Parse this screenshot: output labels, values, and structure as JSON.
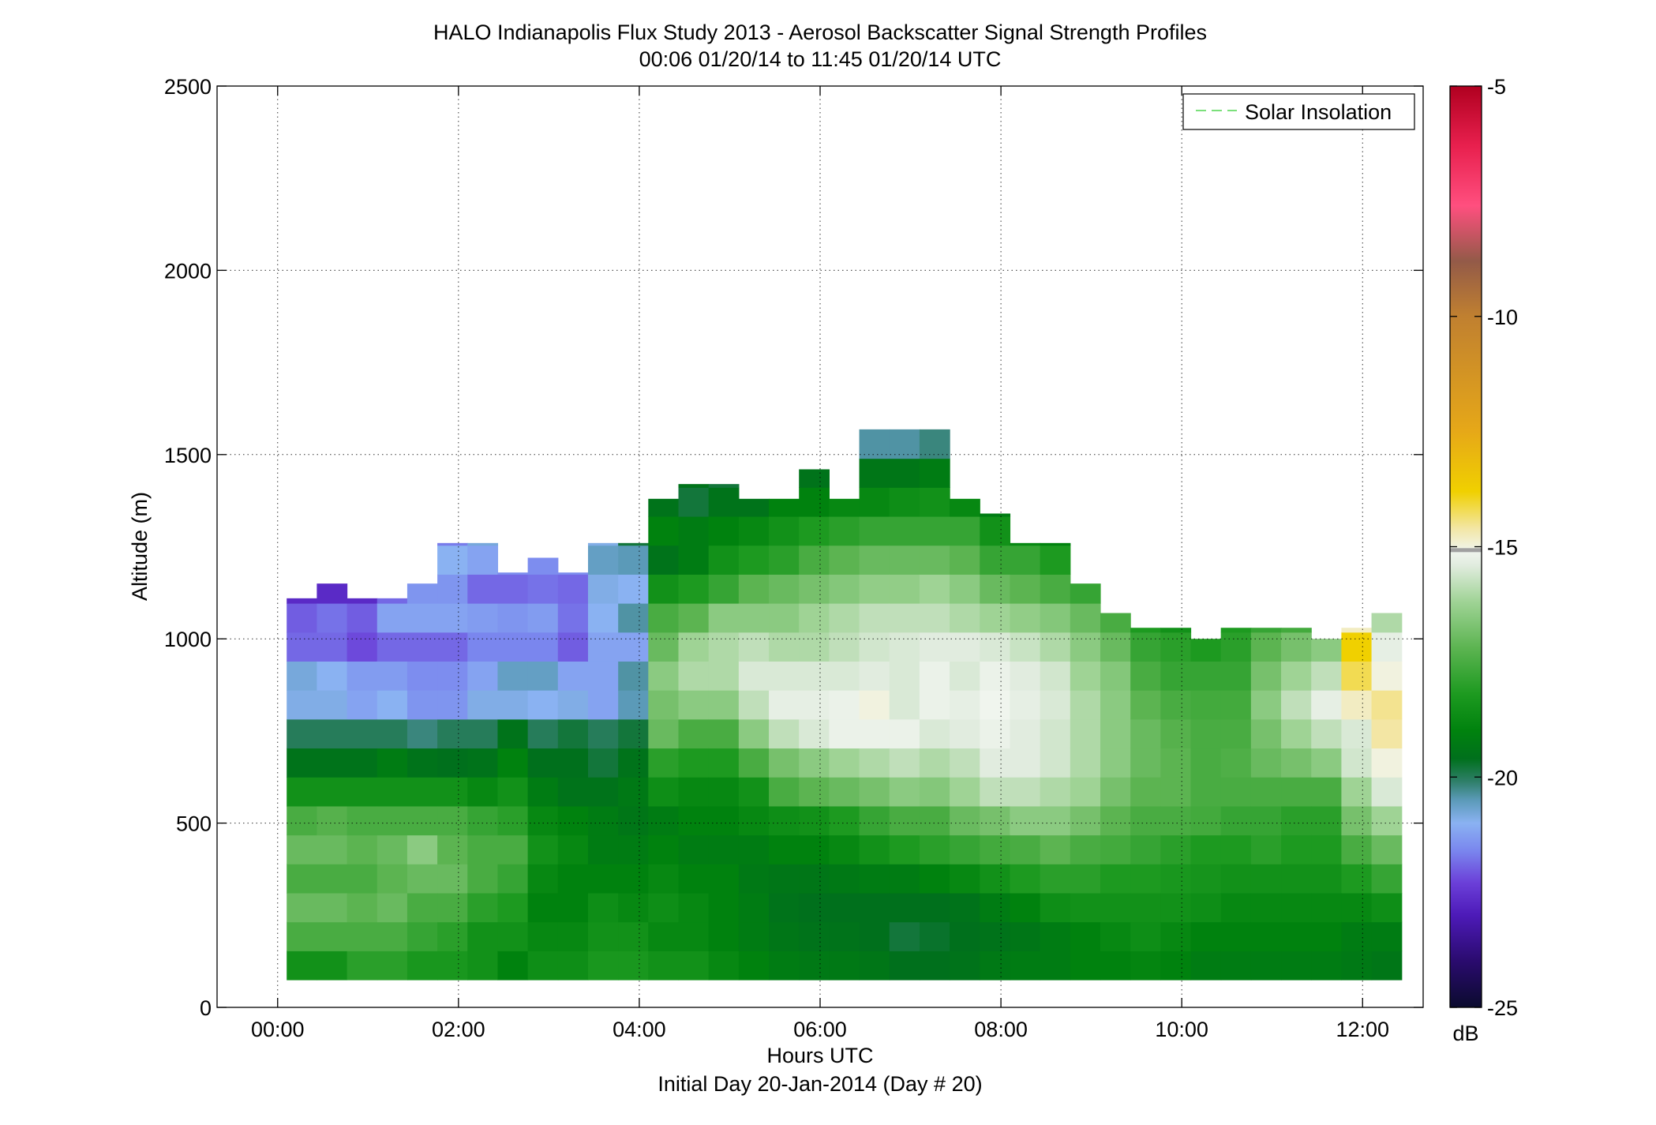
{
  "chart_data": {
    "type": "heatmap",
    "title": "HALO Indianapolis Flux Study 2013 - Aerosol Backscatter Signal Strength Profiles",
    "subtitle": "00:06 01/20/14 to 11:45 01/20/14  UTC",
    "xlabel": "Hours UTC",
    "xlabel_sub": "Initial Day 20-Jan-2014 (Day # 20)",
    "ylabel": "Altitude (m)",
    "x_unit": "hours",
    "xlim": [
      -0.67,
      12.67
    ],
    "ylim": [
      0,
      2500
    ],
    "x_ticks": [
      0,
      2,
      4,
      6,
      8,
      10,
      12
    ],
    "x_tick_labels": [
      "00:00",
      "02:00",
      "04:00",
      "06:00",
      "08:00",
      "10:00",
      "12:00"
    ],
    "y_ticks": [
      0,
      500,
      1000,
      1500,
      2000,
      2500
    ],
    "y_tick_labels": [
      "0",
      "500",
      "1000",
      "1500",
      "2000",
      "2500"
    ],
    "grid": true,
    "legend": {
      "placement": "top-right",
      "entries": [
        {
          "label": "Solar Insolation",
          "color": "#7be07b",
          "style": "dashed"
        }
      ]
    },
    "colorbar": {
      "label": "dB",
      "range": [
        -25,
        -5
      ],
      "ticks": [
        -25,
        -20,
        -15,
        -10,
        -5
      ],
      "tick_labels": [
        "-25",
        "-20",
        "-15",
        "-10",
        "-5"
      ]
    },
    "time_start_h": 0.1,
    "time_step_h": 0.3333,
    "altitude_start_m": 75,
    "altitude_step_m": 78.6,
    "ceiling_m": [
      1110,
      1150,
      1110,
      1110,
      1150,
      1260,
      1260,
      1180,
      1220,
      1180,
      1260,
      1260,
      1380,
      1420,
      1420,
      1380,
      1380,
      1460,
      1380,
      1580,
      1650,
      1580,
      1380,
      1340,
      1260,
      1260,
      1150,
      1070,
      1030,
      1030,
      1000,
      1030,
      1030,
      1030,
      1000,
      1030,
      1070
    ],
    "plume_top_m": [
      660,
      660,
      600,
      600,
      600,
      600,
      600,
      600,
      600,
      600,
      740,
      860,
      1070,
      1110,
      1110,
      1070,
      1070,
      1030,
      1030,
      1070,
      1070,
      1030,
      1030,
      1000,
      1000,
      960,
      960,
      920,
      920,
      920,
      920,
      1000,
      1000,
      1000,
      1000,
      1000,
      1000
    ],
    "profiles_db": [
      [
        -18.5,
        -17.5,
        -17,
        -17.5,
        -17,
        -17.5,
        -18.5,
        -19.5,
        -20,
        -20.5,
        -20.8,
        -21.5,
        -22,
        -22.3,
        -22,
        -21.8,
        -22.5,
        -22.3,
        -22
      ],
      [
        -18.5,
        -17.5,
        -17,
        -17.5,
        -17,
        -17.3,
        -18.5,
        -19.5,
        -20,
        -20.5,
        -21,
        -21.5,
        -21.8,
        -22.3,
        -22.5,
        -22,
        -22.3,
        -22.4,
        -22.4
      ],
      [
        -18,
        -17.5,
        -17.2,
        -17.5,
        -17.2,
        -17.5,
        -18.5,
        -19.5,
        -20,
        -20.8,
        -21.3,
        -21.8,
        -22,
        -22.3,
        -22.1,
        -21.8,
        -22.4,
        -22.4,
        -22.4
      ],
      [
        -18,
        -17.5,
        -17,
        -17.2,
        -17,
        -17.5,
        -18.5,
        -19.2,
        -20,
        -20.6,
        -21.3,
        -21.5,
        -21.2,
        -21.5,
        -21.8,
        -21.5,
        -22.3,
        -22.2,
        -22.2
      ],
      [
        -18.3,
        -17.8,
        -17.5,
        -17,
        -16.5,
        -17.5,
        -18.5,
        -19.5,
        -20.2,
        -21,
        -21.5,
        -21.5,
        -21.2,
        -21,
        -21.2,
        -21.3,
        -21.5,
        -22.2,
        -22.2
      ],
      [
        -18.3,
        -18,
        -17.5,
        -17,
        -17.2,
        -17.5,
        -18.5,
        -19.6,
        -20,
        -21,
        -21.5,
        -21.5,
        -21.2,
        -21,
        -21,
        -21.3,
        -21.5,
        -21.8,
        -21.8
      ],
      [
        -18.5,
        -18.5,
        -18,
        -17.5,
        -17.5,
        -17.8,
        -18.8,
        -19.5,
        -20,
        -20.5,
        -21.2,
        -21.2,
        -21.3,
        -21.5,
        -21.2,
        -20.4,
        -20.6,
        -21.2,
        -21.2
      ],
      [
        -19,
        -18.5,
        -18.2,
        -17.8,
        -17.5,
        -18,
        -18.5,
        -19,
        -19.5,
        -20.5,
        -20.6,
        -21.2,
        -21.4,
        -21.5,
        -21.5,
        -20.5,
        -20.3,
        -21.5,
        -21.5
      ],
      [
        -18.6,
        -18.8,
        -19,
        -18.8,
        -18.5,
        -18.8,
        -19.2,
        -19.6,
        -20,
        -20.6,
        -20.6,
        -21.2,
        -21.3,
        -21.4,
        -21.5,
        -20.2,
        -20.3,
        -21.5,
        -21.5
      ],
      [
        -18.6,
        -18.8,
        -19,
        -19,
        -18.8,
        -19,
        -19.5,
        -19.6,
        -19.8,
        -20.5,
        -21.2,
        -21.6,
        -21.8,
        -21.5,
        -21.5,
        -21.2,
        -20.2,
        -21.8,
        -21.8
      ],
      [
        -18.3,
        -18.5,
        -18.6,
        -19,
        -19.2,
        -19.2,
        -19.5,
        -19.8,
        -20,
        -20.8,
        -21.2,
        -20.8,
        -21,
        -20.5,
        -20.6,
        -20.5,
        -19.8,
        -22,
        -21.8
      ],
      [
        -18.3,
        -18.5,
        -18.8,
        -19,
        -19.2,
        -19.4,
        -19.3,
        -19.5,
        -19.8,
        -20.5,
        -20.4,
        -20.8,
        -20.4,
        -20.6,
        -20.5,
        -19.8,
        -19.5,
        -19.8,
        -19.8
      ],
      [
        -18.5,
        -18.8,
        -18.6,
        -18.8,
        -19,
        -19.2,
        -18.6,
        -18,
        -17,
        -16.8,
        -16.5,
        -17,
        -17.5,
        -18.5,
        -19.5,
        -19,
        -19.5,
        -19.8,
        -20.4
      ],
      [
        -18.5,
        -18.8,
        -18.8,
        -19,
        -19.2,
        -19,
        -18.8,
        -18.2,
        -17.5,
        -16.5,
        -16,
        -16.2,
        -17.2,
        -18.2,
        -19.2,
        -19.2,
        -19.8,
        -19.5,
        -20.5
      ],
      [
        -18.8,
        -19,
        -19,
        -19,
        -19.2,
        -19,
        -18.8,
        -18.2,
        -17.5,
        -16.5,
        -16,
        -16,
        -16.5,
        -17.8,
        -18.5,
        -19,
        -19.5,
        -19.8,
        -20.2
      ],
      [
        -19,
        -19.2,
        -19.2,
        -19.3,
        -19.2,
        -18.8,
        -18.5,
        -17.5,
        -16.5,
        -15.8,
        -15.5,
        -15.8,
        -16.5,
        -17.2,
        -18.2,
        -18.8,
        -19.5,
        -19.6,
        -20.6
      ],
      [
        -19.2,
        -19.4,
        -19.5,
        -19.4,
        -19,
        -18.6,
        -17.5,
        -16.8,
        -15.8,
        -15.3,
        -15.5,
        -16,
        -16.5,
        -17,
        -18,
        -18.5,
        -19,
        -19.6,
        -20.6
      ],
      [
        -19.3,
        -19.5,
        -19.6,
        -19.4,
        -19,
        -18.5,
        -17.2,
        -16.5,
        -15.5,
        -15.3,
        -15.5,
        -16,
        -16.2,
        -16.8,
        -17.5,
        -18.2,
        -19,
        -19.5,
        -20.5
      ],
      [
        -19.3,
        -19.5,
        -19.6,
        -19.3,
        -18.8,
        -18.2,
        -17,
        -16.2,
        -15.2,
        -15.2,
        -15.5,
        -15.8,
        -16,
        -16.6,
        -17.2,
        -18,
        -18.8,
        -19.5,
        -20.8
      ],
      [
        -19.4,
        -19.6,
        -19.6,
        -19.2,
        -18.5,
        -17.8,
        -16.8,
        -16,
        -15.2,
        -15,
        -15.4,
        -15.6,
        -15.8,
        -16.4,
        -17,
        -17.8,
        -18.8,
        -19.4,
        -20.4
      ],
      [
        -19.6,
        -19.8,
        -19.6,
        -19.2,
        -18.2,
        -17.5,
        -16.5,
        -15.8,
        -15.2,
        -15.5,
        -15.5,
        -15.5,
        -15.8,
        -16.4,
        -17,
        -17.8,
        -18.6,
        -19.4,
        -20.4
      ],
      [
        -19.6,
        -19.7,
        -19.6,
        -19,
        -18,
        -17.5,
        -16.6,
        -16,
        -15.5,
        -15.2,
        -15.2,
        -15.4,
        -15.8,
        -16.2,
        -17,
        -17.8,
        -18.5,
        -19.2,
        -20.2
      ],
      [
        -19.5,
        -19.6,
        -19.5,
        -18.8,
        -17.8,
        -17,
        -16.2,
        -15.8,
        -15.4,
        -15.3,
        -15.5,
        -15.4,
        -16,
        -16.5,
        -17.2,
        -17.8,
        -18.8,
        -19.5,
        -20.6
      ],
      [
        -19.3,
        -19.5,
        -19.2,
        -18.5,
        -17.6,
        -16.8,
        -15.8,
        -15.4,
        -15.2,
        -15.1,
        -15.2,
        -15.5,
        -16.2,
        -17,
        -17.8,
        -18.5,
        -19.2,
        -19.8,
        -20.6
      ],
      [
        -19.2,
        -19.4,
        -19,
        -18.2,
        -17.5,
        -16.5,
        -15.8,
        -15.4,
        -15.4,
        -15.3,
        -15.4,
        -15.7,
        -16.4,
        -17.2,
        -17.8,
        -18.8,
        -19.5,
        -20,
        -20.6
      ],
      [
        -19.2,
        -19.2,
        -18.6,
        -18,
        -17.2,
        -16.5,
        -16,
        -15.6,
        -15.6,
        -15.5,
        -15.6,
        -16,
        -16.6,
        -17.5,
        -18.2,
        -19,
        -19.8,
        -20.2,
        -20.4
      ],
      [
        -19,
        -19,
        -18.5,
        -18,
        -17.5,
        -16.8,
        -16.2,
        -16,
        -16,
        -16,
        -16.2,
        -16.5,
        -17,
        -17.8,
        -18.5,
        -19.4,
        -19.8,
        -21.2,
        -21.2
      ],
      [
        -19,
        -18.8,
        -18.5,
        -18.2,
        -17.6,
        -17.2,
        -16.8,
        -16.5,
        -16.5,
        -16.5,
        -16.6,
        -17,
        -17.5,
        -18.2,
        -19,
        -19.8,
        -19.8,
        -21.2,
        -21.2
      ],
      [
        -18.9,
        -18.6,
        -18.5,
        -18.2,
        -17.8,
        -17.5,
        -17.2,
        -17,
        -17,
        -17.2,
        -17.5,
        -17.8,
        -18.2,
        -18.8,
        -19.2,
        -19.6,
        -20,
        -21.2,
        -21.5
      ],
      [
        -19,
        -18.8,
        -18.5,
        -18.3,
        -18,
        -17.5,
        -17.2,
        -17.2,
        -17.3,
        -17.5,
        -17.8,
        -18,
        -18.5,
        -19,
        -19.5,
        -19.8,
        -20.2,
        -21.2,
        -21.6
      ],
      [
        -19.2,
        -19,
        -18.6,
        -18.4,
        -18.2,
        -17.6,
        -17.5,
        -17.5,
        -17.5,
        -17.6,
        -17.8,
        -18.2,
        -18.6,
        -19,
        -19.5,
        -19.8,
        -20.5,
        -21,
        -21.6
      ],
      [
        -19.2,
        -19,
        -18.8,
        -18.5,
        -18.2,
        -17.8,
        -17.5,
        -17.4,
        -17.5,
        -17.6,
        -17.8,
        -18,
        -18.2,
        -18.8,
        -19.2,
        -19.6,
        -20.2,
        -21.4,
        -21.4
      ],
      [
        -19.2,
        -19,
        -18.8,
        -18.5,
        -18,
        -17.8,
        -17.5,
        -17,
        -16.8,
        -16.5,
        -16.8,
        -17.2,
        -17.8,
        -18.5,
        -19,
        -19.5,
        -20.2,
        -21.2,
        -21.2
      ],
      [
        -19.2,
        -19,
        -18.8,
        -18.5,
        -18.2,
        -18,
        -17.5,
        -16.8,
        -16.2,
        -15.8,
        -16.2,
        -16.8,
        -17.6,
        -18.5,
        -19,
        -19.6,
        -20.2,
        -21.4,
        -21.4
      ],
      [
        -19.2,
        -19,
        -18.8,
        -18.5,
        -18.2,
        -18,
        -17.5,
        -16.5,
        -15.8,
        -15.3,
        -15.8,
        -16.5,
        -17.5,
        -18.4,
        -19,
        -19.6,
        -20.4,
        -21.6,
        -21.6
      ],
      [
        -19.3,
        -19.2,
        -18.8,
        -18.2,
        -17.5,
        -16.8,
        -16.2,
        -15.6,
        -15.5,
        -14.8,
        -14.2,
        -13.8,
        -14.8,
        -16.8,
        -18,
        -19.2,
        -20.6,
        -21.6,
        -21.6
      ],
      [
        -19.4,
        -19.2,
        -18.6,
        -17.8,
        -17,
        -16.2,
        -15.5,
        -15,
        -14.6,
        -14.5,
        -15,
        -15.3,
        -16,
        -17.5,
        -18.4,
        -19.6,
        -20.2,
        -21.2,
        -21.2
      ]
    ]
  }
}
